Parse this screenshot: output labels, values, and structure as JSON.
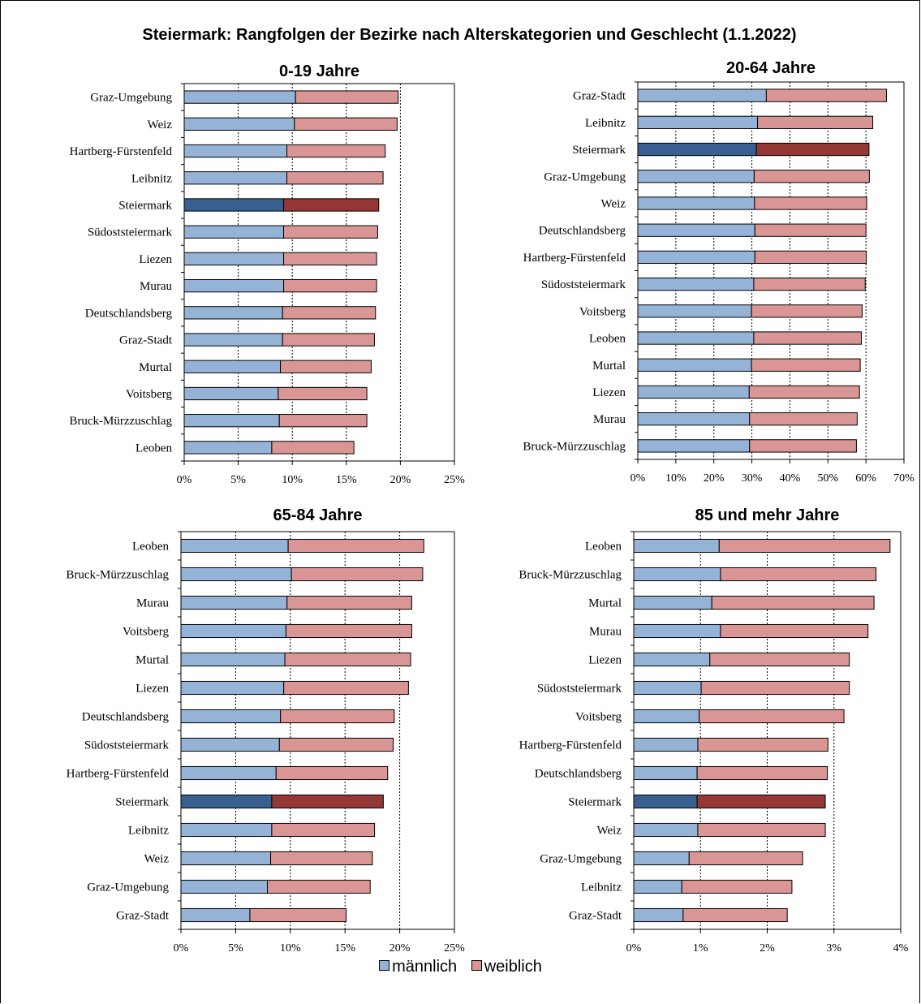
{
  "title": "Steiermark: Rangfolgen der Bezirke nach Alterskategorien und Geschlecht (1.1.2022)",
  "legend": {
    "male": "männlich",
    "female": "weiblich"
  },
  "colors": {
    "male": "#95b3d7",
    "female": "#d99694",
    "male_highlight": "#376091",
    "female_highlight": "#953735"
  },
  "highlight_category": "Steiermark",
  "chart_data": [
    {
      "type": "bar",
      "stacked": true,
      "orientation": "horizontal",
      "title": "0-19 Jahre",
      "xlim": [
        0,
        25
      ],
      "xticks": [
        "0%",
        "5%",
        "10%",
        "15%",
        "20%",
        "25%"
      ],
      "categories": [
        "Graz-Umgebung",
        "Weiz",
        "Hartberg-Fürstenfeld",
        "Leibnitz",
        "Steiermark",
        "Südoststeiermark",
        "Liezen",
        "Murau",
        "Deutschlandsberg",
        "Graz-Stadt",
        "Murtal",
        "Voitsberg",
        "Bruck-Mürzzuschlag",
        "Leoben"
      ],
      "series": [
        {
          "name": "männlich",
          "values": [
            10.3,
            10.2,
            9.5,
            9.5,
            9.2,
            9.2,
            9.2,
            9.2,
            9.1,
            9.1,
            8.9,
            8.7,
            8.8,
            8.1
          ]
        },
        {
          "name": "weiblich",
          "values": [
            9.5,
            9.5,
            9.1,
            8.9,
            8.8,
            8.7,
            8.6,
            8.6,
            8.6,
            8.5,
            8.4,
            8.2,
            8.1,
            7.6
          ]
        }
      ]
    },
    {
      "type": "bar",
      "stacked": true,
      "orientation": "horizontal",
      "title": "20-64 Jahre",
      "xlim": [
        0,
        70
      ],
      "xticks": [
        "0%",
        "10%",
        "20%",
        "30%",
        "40%",
        "50%",
        "60%",
        "70%"
      ],
      "categories": [
        "Graz-Stadt",
        "Leibnitz",
        "Steiermark",
        "Graz-Umgebung",
        "Weiz",
        "Deutschlandsberg",
        "Hartberg-Fürstenfeld",
        "Südoststeiermark",
        "Voitsberg",
        "Leoben",
        "Murtal",
        "Liezen",
        "Murau",
        "Bruck-Mürzzuschlag"
      ],
      "series": [
        {
          "name": "männlich",
          "values": [
            33.8,
            31.5,
            31.2,
            30.6,
            30.7,
            30.8,
            30.8,
            30.5,
            29.9,
            30.5,
            29.9,
            29.3,
            29.4,
            29.4
          ]
        },
        {
          "name": "weiblich",
          "values": [
            31.6,
            30.3,
            29.6,
            30.3,
            29.5,
            29.2,
            29.3,
            29.3,
            29.1,
            28.3,
            28.6,
            29.0,
            28.3,
            28.1
          ]
        }
      ]
    },
    {
      "type": "bar",
      "stacked": true,
      "orientation": "horizontal",
      "title": "65-84 Jahre",
      "xlim": [
        0,
        25
      ],
      "xticks": [
        "0%",
        "5%",
        "10%",
        "15%",
        "20%",
        "25%"
      ],
      "categories": [
        "Leoben",
        "Bruck-Mürzzuschlag",
        "Murau",
        "Voitsberg",
        "Murtal",
        "Liezen",
        "Deutschlandsberg",
        "Südoststeiermark",
        "Hartberg-Fürstenfeld",
        "Steiermark",
        "Leibnitz",
        "Weiz",
        "Graz-Umgebung",
        "Graz-Stadt"
      ],
      "series": [
        {
          "name": "männlich",
          "values": [
            9.8,
            10.1,
            9.7,
            9.6,
            9.5,
            9.4,
            9.1,
            9.0,
            8.7,
            8.3,
            8.3,
            8.2,
            7.9,
            6.3
          ]
        },
        {
          "name": "weiblich",
          "values": [
            12.4,
            12.0,
            11.4,
            11.5,
            11.5,
            11.4,
            10.4,
            10.4,
            10.2,
            10.2,
            9.4,
            9.3,
            9.4,
            8.8
          ]
        }
      ]
    },
    {
      "type": "bar",
      "stacked": true,
      "orientation": "horizontal",
      "title": "85 und mehr Jahre",
      "xlim": [
        0,
        4
      ],
      "xticks": [
        "0%",
        "1%",
        "2%",
        "3%",
        "4%"
      ],
      "categories": [
        "Leoben",
        "Bruck-Mürzzuschlag",
        "Murtal",
        "Murau",
        "Liezen",
        "Südoststeiermark",
        "Voitsberg",
        "Hartberg-Fürstenfeld",
        "Deutschlandsberg",
        "Steiermark",
        "Weiz",
        "Graz-Umgebung",
        "Leibnitz",
        "Graz-Stadt"
      ],
      "series": [
        {
          "name": "männlich",
          "values": [
            1.28,
            1.3,
            1.17,
            1.3,
            1.14,
            1.01,
            0.98,
            0.96,
            0.95,
            0.95,
            0.96,
            0.83,
            0.72,
            0.74
          ]
        },
        {
          "name": "weiblich",
          "values": [
            2.56,
            2.33,
            2.43,
            2.21,
            2.09,
            2.22,
            2.17,
            1.95,
            1.95,
            1.92,
            1.91,
            1.7,
            1.65,
            1.56
          ]
        }
      ]
    }
  ]
}
